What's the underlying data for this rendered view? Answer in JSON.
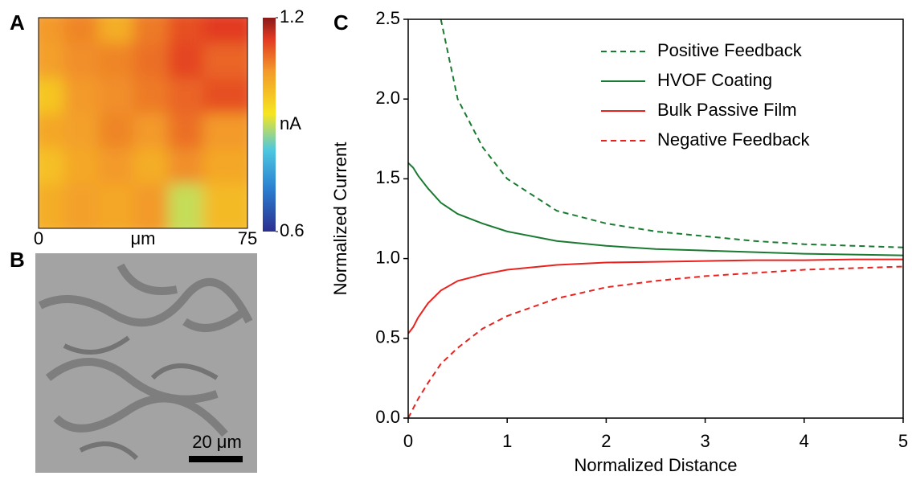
{
  "panel_labels": [
    "A",
    "B",
    "C"
  ],
  "scale_bar": {
    "label": "20 μm"
  },
  "chart_data": [
    {
      "type": "heatmap",
      "x_label": "μm",
      "xlim": [
        0,
        75
      ],
      "xticks": [
        0,
        75
      ],
      "colorbar_label": "nA",
      "clim": [
        0.6,
        1.2
      ],
      "cticks": [
        1.2,
        0.6
      ],
      "values": [
        [
          1.05,
          1.07,
          1.02,
          1.08,
          1.12,
          1.14
        ],
        [
          1.04,
          1.06,
          1.07,
          1.09,
          1.13,
          1.1
        ],
        [
          0.98,
          1.05,
          1.06,
          1.08,
          1.1,
          1.12
        ],
        [
          1.03,
          1.04,
          1.07,
          1.05,
          1.09,
          1.05
        ],
        [
          0.99,
          1.03,
          1.05,
          1.02,
          1.06,
          1.03
        ],
        [
          1.02,
          1.04,
          1.03,
          1.05,
          0.9,
          1.0
        ]
      ]
    },
    {
      "type": "line",
      "x_label": "Normalized Distance",
      "y_label": "Normalized Current",
      "xlim": [
        0,
        5
      ],
      "ylim": [
        0,
        2.5
      ],
      "xticks": [
        0,
        1,
        2,
        3,
        4,
        5
      ],
      "yticks": [
        {
          "value": 0,
          "label": "0.0"
        },
        0.5,
        {
          "value": 1,
          "label": "1.0"
        },
        1.5,
        {
          "value": 2,
          "label": "2.0"
        },
        2.5
      ],
      "legend": "upper-right",
      "x": [
        0,
        0.05,
        0.1,
        0.2,
        0.33,
        0.5,
        0.75,
        1,
        1.5,
        2,
        2.5,
        3,
        3.5,
        4,
        4.5,
        5
      ],
      "series": [
        {
          "name": "Positive Feedback",
          "color": "#1b7a32",
          "dashed": true,
          "values": [
            null,
            null,
            null,
            null,
            2.5,
            2.0,
            1.7,
            1.5,
            1.3,
            1.22,
            1.17,
            1.14,
            1.11,
            1.09,
            1.08,
            1.07
          ]
        },
        {
          "name": "HVOF Coating",
          "color": "#1b7a32",
          "dashed": false,
          "values": [
            1.6,
            1.57,
            1.52,
            1.44,
            1.35,
            1.28,
            1.22,
            1.17,
            1.11,
            1.08,
            1.06,
            1.05,
            1.04,
            1.03,
            1.025,
            1.02
          ]
        },
        {
          "name": "Bulk Passive Film",
          "color": "#e8231f",
          "dashed": false,
          "values": [
            0.53,
            0.57,
            0.63,
            0.72,
            0.8,
            0.86,
            0.9,
            0.93,
            0.96,
            0.975,
            0.98,
            0.985,
            0.99,
            0.99,
            0.995,
            0.995
          ]
        },
        {
          "name": "Negative Feedback",
          "color": "#e8231f",
          "dashed": true,
          "values": [
            0,
            0.06,
            0.12,
            0.22,
            0.34,
            0.44,
            0.56,
            0.64,
            0.75,
            0.82,
            0.86,
            0.89,
            0.91,
            0.93,
            0.94,
            0.95
          ]
        }
      ]
    }
  ]
}
